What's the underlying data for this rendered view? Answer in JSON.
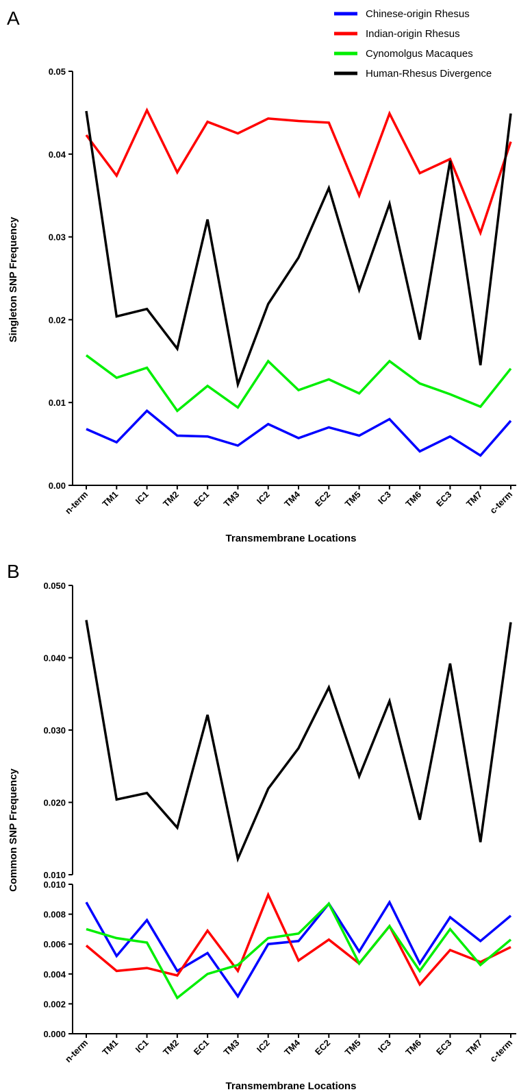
{
  "chart_data": [
    {
      "type": "line",
      "panel_label": "A",
      "xlabel": "Transmembrane Locations",
      "ylabel": "Singleton SNP Frequency",
      "categories": [
        "n-term",
        "TM1",
        "IC1",
        "TM2",
        "EC1",
        "TM3",
        "IC2",
        "TM4",
        "EC2",
        "TM5",
        "IC3",
        "TM6",
        "EC3",
        "TM7",
        "c-term"
      ],
      "ylim": [
        0,
        0.05
      ],
      "yticks": [
        0.0,
        0.01,
        0.02,
        0.03,
        0.04,
        0.05
      ],
      "ytick_labels": [
        "0.00",
        "0.01",
        "0.02",
        "0.03",
        "0.04",
        "0.05"
      ],
      "legend": {
        "position": "top-right"
      },
      "series": [
        {
          "name": "Chinese-origin Rhesus",
          "color": "#0000ff",
          "values": [
            0.0068,
            0.0052,
            0.009,
            0.006,
            0.0059,
            0.0048,
            0.0074,
            0.0057,
            0.007,
            0.006,
            0.008,
            0.0041,
            0.0059,
            0.0036,
            0.0078
          ]
        },
        {
          "name": "Indian-origin Rhesus",
          "color": "#ff0000",
          "values": [
            0.0423,
            0.0374,
            0.0453,
            0.0378,
            0.0439,
            0.0425,
            0.0443,
            0.044,
            0.0438,
            0.035,
            0.0449,
            0.0377,
            0.0394,
            0.0305,
            0.0415
          ]
        },
        {
          "name": "Cynomolgus Macaques",
          "color": "#00ee00",
          "values": [
            0.0157,
            0.013,
            0.0142,
            0.009,
            0.012,
            0.0094,
            0.015,
            0.0115,
            0.0128,
            0.0111,
            0.015,
            0.0123,
            0.011,
            0.0095,
            0.0141
          ]
        },
        {
          "name": "Human-Rhesus Divergence",
          "color": "#000000",
          "values": [
            0.0452,
            0.0204,
            0.0213,
            0.0165,
            0.0321,
            0.0122,
            0.0219,
            0.0275,
            0.0359,
            0.0236,
            0.034,
            0.0176,
            0.0392,
            0.0145,
            0.0449
          ]
        }
      ]
    },
    {
      "type": "line",
      "panel_label": "B",
      "xlabel": "Transmembrane Locations",
      "ylabel": "Common SNP Frequency",
      "categories": [
        "n-term",
        "TM1",
        "IC1",
        "TM2",
        "EC1",
        "TM3",
        "IC2",
        "TM4",
        "EC2",
        "TM5",
        "IC3",
        "TM6",
        "EC3",
        "TM7",
        "c-term"
      ],
      "broken_axis": true,
      "ylim_lower": [
        0,
        0.01
      ],
      "ylim_upper": [
        0.01,
        0.05
      ],
      "yticks_lower": [
        0.0,
        0.002,
        0.004,
        0.006,
        0.008,
        0.01
      ],
      "ytick_labels_lower": [
        "0.000",
        "0.002",
        "0.004",
        "0.006",
        "0.008",
        "0.010"
      ],
      "yticks_upper": [
        0.01,
        0.02,
        0.03,
        0.04,
        0.05
      ],
      "ytick_labels_upper": [
        "0.010",
        "0.020",
        "0.030",
        "0.040",
        "0.050"
      ],
      "series": [
        {
          "name": "Chinese-origin Rhesus",
          "color": "#0000ff",
          "segment": "lower",
          "values": [
            0.0088,
            0.0052,
            0.0076,
            0.0042,
            0.0054,
            0.0025,
            0.006,
            0.0062,
            0.0087,
            0.0055,
            0.0088,
            0.0047,
            0.0078,
            0.0062,
            0.0079
          ]
        },
        {
          "name": "Indian-origin Rhesus",
          "color": "#ff0000",
          "segment": "lower",
          "values": [
            0.0059,
            0.0042,
            0.0044,
            0.0039,
            0.0069,
            0.0042,
            0.0093,
            0.0049,
            0.0063,
            0.0047,
            0.0072,
            0.0033,
            0.0056,
            0.0048,
            0.0058
          ]
        },
        {
          "name": "Cynomolgus Macaques",
          "color": "#00ee00",
          "segment": "lower",
          "values": [
            0.007,
            0.0064,
            0.0061,
            0.0024,
            0.004,
            0.0046,
            0.0064,
            0.0067,
            0.0087,
            0.0047,
            0.0072,
            0.0042,
            0.007,
            0.0046,
            0.0063
          ]
        },
        {
          "name": "Human-Rhesus Divergence",
          "color": "#000000",
          "segment": "upper",
          "values": [
            0.0452,
            0.0204,
            0.0213,
            0.0165,
            0.0321,
            0.0122,
            0.0219,
            0.0275,
            0.0359,
            0.0236,
            0.034,
            0.0176,
            0.0392,
            0.0145,
            0.0449
          ]
        }
      ]
    }
  ]
}
